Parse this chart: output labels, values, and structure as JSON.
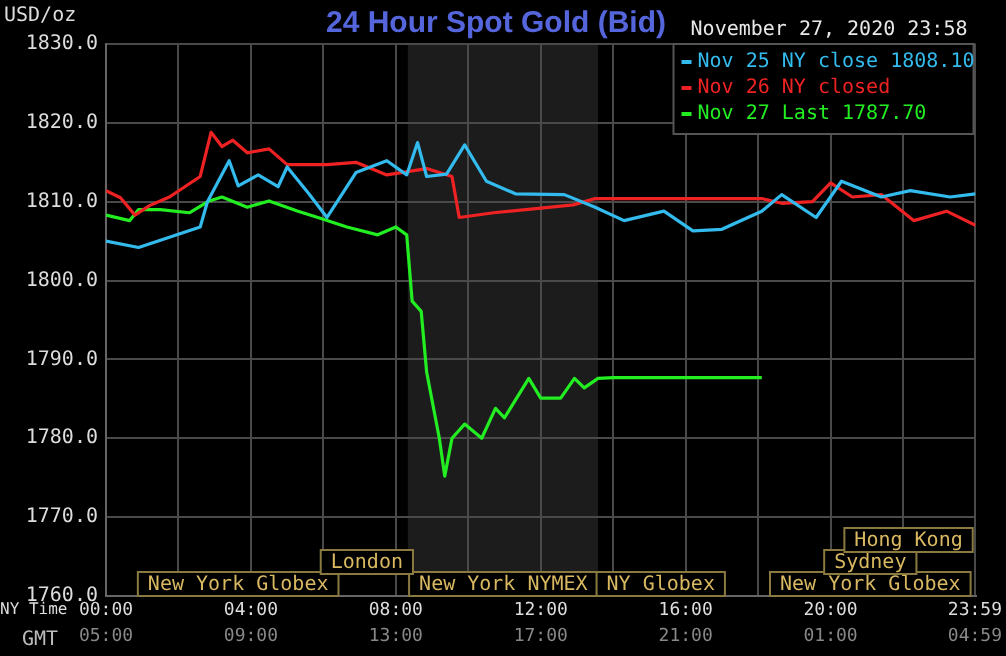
{
  "chart_data": {
    "type": "line",
    "title": "24 Hour Spot Gold (Bid)",
    "subtitle": "November 27, 2020 23:58",
    "ylabel": "USD/oz",
    "xlabel": "NY Time",
    "x2label": "GMT",
    "xlim": [
      0,
      24
    ],
    "xticks": [
      {
        "value": 0,
        "label": "00:00"
      },
      {
        "value": 2,
        "label": null
      },
      {
        "value": 4,
        "label": "04:00"
      },
      {
        "value": 6,
        "label": null
      },
      {
        "value": 8,
        "label": "08:00"
      },
      {
        "value": 10,
        "label": null
      },
      {
        "value": 12,
        "label": "12:00"
      },
      {
        "value": 14,
        "label": null
      },
      {
        "value": 16,
        "label": "16:00"
      },
      {
        "value": 18,
        "label": null
      },
      {
        "value": 20,
        "label": "20:00"
      },
      {
        "value": 22,
        "label": null
      },
      {
        "value": 23.983,
        "label": "23:59"
      }
    ],
    "x2lim": [
      "2020-11-27T05:00",
      "2020-11-28T05:00"
    ],
    "x2ticks": [
      {
        "value": "2020-11-27T05:00",
        "label": "05:00"
      },
      {
        "value": "2020-11-27T09:00",
        "label": "09:00"
      },
      {
        "value": "2020-11-27T13:00",
        "label": "13:00"
      },
      {
        "value": "2020-11-27T17:00",
        "label": "17:00"
      },
      {
        "value": "2020-11-27T21:00",
        "label": "21:00"
      },
      {
        "value": "2020-11-28T01:00",
        "label": "01:00"
      },
      {
        "value": "2020-11-28T04:59",
        "label": "04:59"
      }
    ],
    "ylim": [
      1760,
      1830
    ],
    "yticks": [
      {
        "value": 1760,
        "label": "1760.0"
      },
      {
        "value": 1770,
        "label": "1770.0"
      },
      {
        "value": 1780,
        "label": "1780.0"
      },
      {
        "value": 1790,
        "label": "1790.0"
      },
      {
        "value": 1800,
        "label": "1800.0"
      },
      {
        "value": 1810,
        "label": "1810.0"
      },
      {
        "value": 1820,
        "label": "1820.0"
      },
      {
        "value": 1830,
        "label": "1830.0"
      }
    ],
    "grid": true,
    "legend": "top right",
    "marker": "none",
    "bands": [
      {
        "axis": "x",
        "from": 8.33,
        "to": 13.58,
        "color": "#1c1c1c"
      }
    ],
    "annotations": [
      "New York Globex",
      "New York NYMEX",
      "NY Globex",
      "New York Globex",
      "London",
      "Sydney",
      "Hong Kong"
    ],
    "series": [
      {
        "name": "Nov 25 NY close 1808.10",
        "color": "#33bbee",
        "x": [
          0,
          0.9,
          2.6,
          2.8,
          3.4,
          3.65,
          4.2,
          4.75,
          5,
          5.6,
          6.1,
          6.9,
          7.75,
          8.3,
          8.6,
          8.85,
          9.4,
          9.9,
          10.5,
          11.3,
          12.65,
          13.5,
          14.3,
          15.4,
          16.2,
          17,
          18.1,
          18.65,
          19.6,
          20.3,
          21.4,
          22.2,
          23.3,
          24
        ],
        "values": [
          1805,
          1804.2,
          1806.8,
          1810,
          1815.2,
          1812,
          1813.4,
          1811.9,
          1814.4,
          1811,
          1808,
          1813.7,
          1815.2,
          1813.4,
          1817.5,
          1813.2,
          1813.5,
          1817.2,
          1812.6,
          1811,
          1810.9,
          1809.3,
          1807.6,
          1808.8,
          1806.3,
          1806.5,
          1808.8,
          1810.9,
          1808,
          1812.6,
          1810.6,
          1811.4,
          1810.6,
          1811
        ]
      },
      {
        "name": "Nov 26 NY closed",
        "color": "#ee2222",
        "x": [
          0,
          0.4,
          0.8,
          1.2,
          1.75,
          2.6,
          2.9,
          3.2,
          3.5,
          3.9,
          4.5,
          5,
          6.1,
          6.9,
          7.75,
          8.85,
          9.55,
          9.75,
          10.7,
          11.8,
          12.9,
          13.5,
          18.1,
          18.65,
          19.5,
          20,
          20.6,
          21.4,
          22.3,
          23.2,
          24
        ],
        "values": [
          1811.4,
          1810.5,
          1808.3,
          1809.5,
          1810.6,
          1813.2,
          1818.8,
          1817,
          1817.8,
          1816.2,
          1816.7,
          1814.7,
          1814.7,
          1815,
          1813.4,
          1814.2,
          1813.2,
          1808,
          1808.6,
          1809.1,
          1809.6,
          1810.4,
          1810.4,
          1809.8,
          1810,
          1812.4,
          1810.6,
          1810.9,
          1807.6,
          1808.8,
          1807
        ]
      },
      {
        "name": "Nov 27 Last 1787.70",
        "color": "#22ee22",
        "x": [
          0,
          0.65,
          0.9,
          1.5,
          2.3,
          2.85,
          3.2,
          3.9,
          4.5,
          5.3,
          5.85,
          6.65,
          7.5,
          8,
          8.3,
          8.45,
          8.7,
          8.85,
          9.2,
          9.35,
          9.55,
          9.9,
          10.37,
          10.75,
          11,
          11.67,
          12,
          12.55,
          12.93,
          13.2,
          13.58,
          14.02,
          18.1
        ],
        "values": [
          1808.3,
          1807.6,
          1809,
          1809,
          1808.6,
          1810.1,
          1810.6,
          1809.3,
          1810.1,
          1808.8,
          1808,
          1806.8,
          1805.8,
          1806.8,
          1805.8,
          1797.4,
          1796.1,
          1788.4,
          1780,
          1775.2,
          1780,
          1781.8,
          1780,
          1783.8,
          1782.6,
          1787.6,
          1785.1,
          1785.1,
          1787.6,
          1786.4,
          1787.6,
          1787.7,
          1787.7
        ]
      }
    ]
  }
}
